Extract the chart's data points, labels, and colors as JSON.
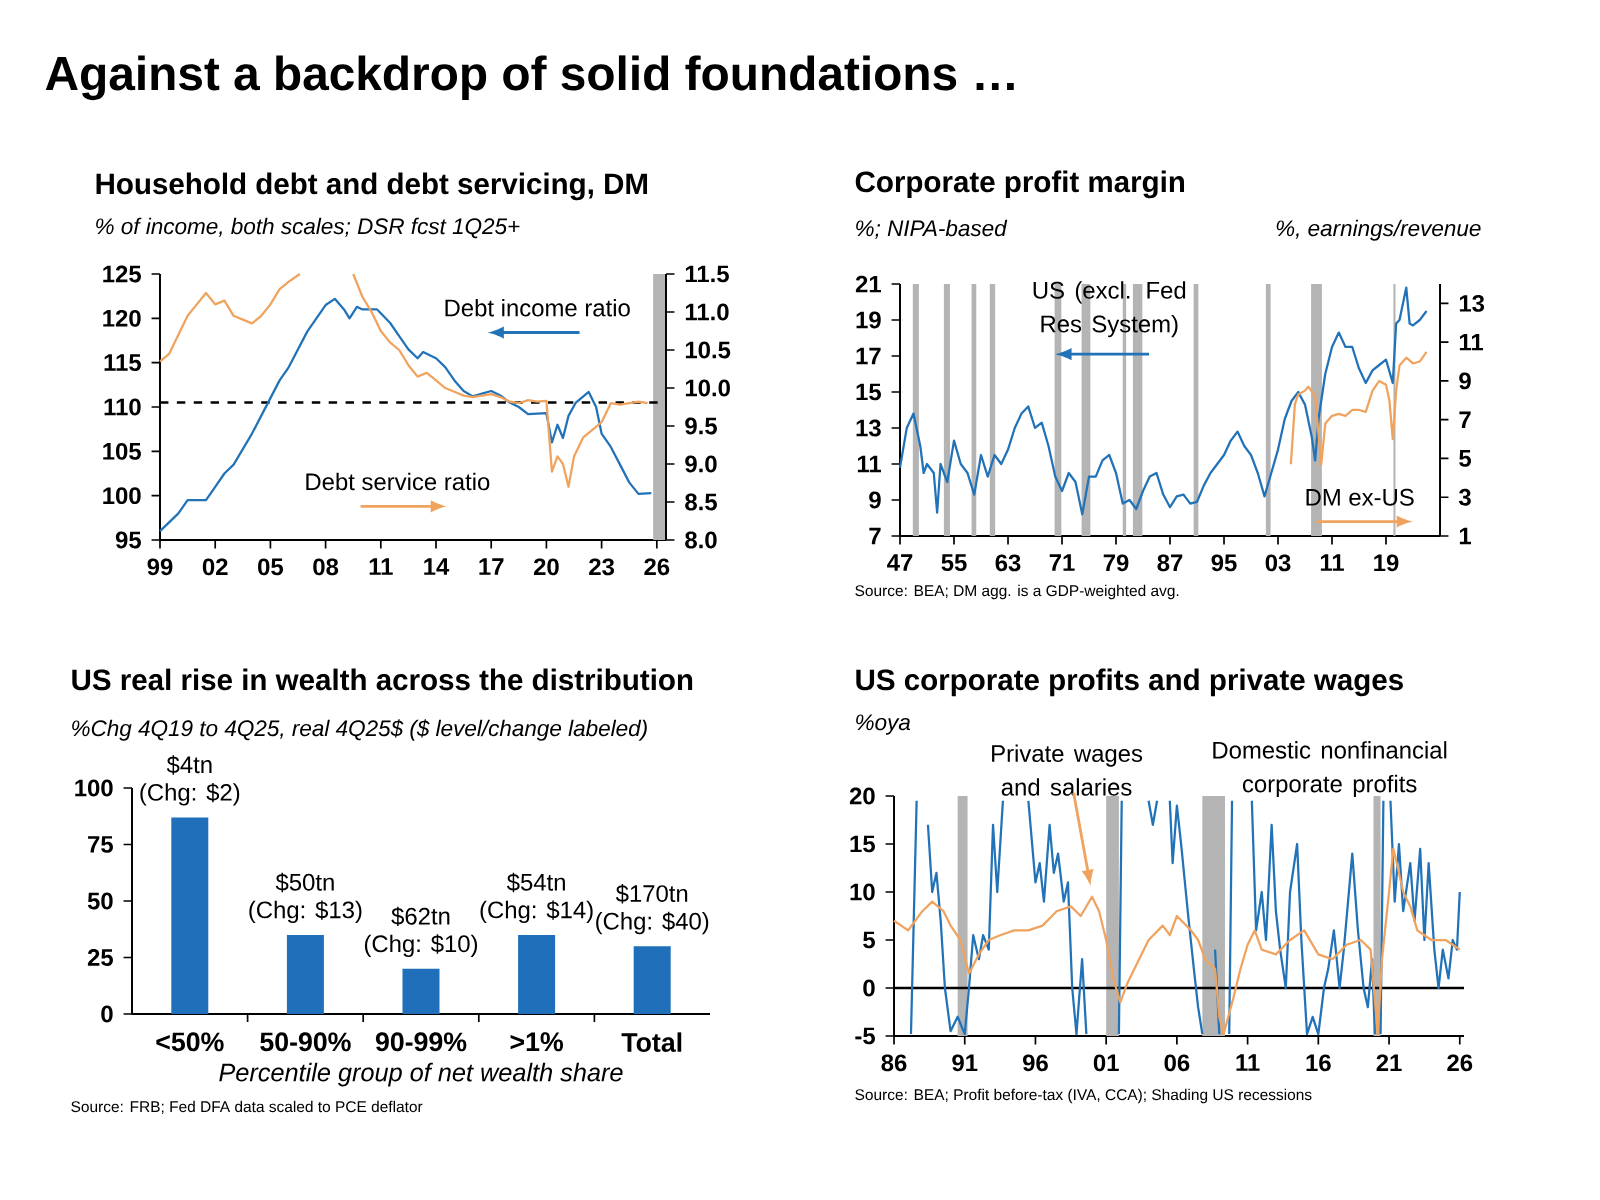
{
  "chart_data": [
    {
      "type": "other",
      "title": "Against a backdrop of solid foundations …"
    },
    {
      "type": "line",
      "title": "Household debt and debt servicing, DM",
      "subtitle": "% of income, both scales; DSR fcst 1Q25+",
      "xlim": [
        1999,
        2026.5
      ],
      "xticks": [
        {
          "value": 1999,
          "label": "99"
        },
        {
          "value": 2002,
          "label": "02"
        },
        {
          "value": 2005,
          "label": "05"
        },
        {
          "value": 2008,
          "label": "08"
        },
        {
          "value": 2011,
          "label": "11"
        },
        {
          "value": 2014,
          "label": "14"
        },
        {
          "value": 2017,
          "label": "17"
        },
        {
          "value": 2020,
          "label": "20"
        },
        {
          "value": 2023,
          "label": "23"
        },
        {
          "value": 2026,
          "label": "26"
        }
      ],
      "ylim": [
        95,
        125
      ],
      "yticks": [
        95,
        100,
        105,
        110,
        115,
        120,
        125
      ],
      "y2lim": [
        8,
        11.5
      ],
      "y2ticks": [
        {
          "value": 8,
          "label": "8.0"
        },
        {
          "value": 8.5,
          "label": "8.5"
        },
        {
          "value": 9,
          "label": "9.0"
        },
        {
          "value": 9.5,
          "label": "9.5"
        },
        {
          "value": 10,
          "label": "10.0"
        },
        {
          "value": 10.5,
          "label": "10.5"
        },
        {
          "value": 11,
          "label": "11.0"
        },
        {
          "value": 11.5,
          "label": "11.5"
        }
      ],
      "series": [
        {
          "name": "Debt income ratio",
          "color": "#2272b8",
          "x": [
            1999,
            2000,
            2000.5,
            2001.5,
            2002,
            2002.5,
            2003,
            2004,
            2005,
            2005.5,
            2006,
            2007,
            2008,
            2008.5,
            2009,
            2009.3,
            2009.7,
            2010,
            2010.8,
            2011.5,
            2012,
            2012.5,
            2013,
            2013.3,
            2014,
            2014.5,
            2015,
            2015.5,
            2016,
            2016.5,
            2017,
            2017.5,
            2018,
            2018.5,
            2019,
            2020,
            2020.3,
            2020.6,
            2020.9,
            2021.2,
            2021.6,
            2022.3,
            2022.7,
            2023,
            2023.5,
            2024,
            2024.5,
            2025,
            2025.7
          ],
          "values": [
            96,
            98,
            99.5,
            99.5,
            101,
            102.5,
            103.5,
            107,
            111,
            113,
            114.5,
            118.5,
            121.5,
            122.2,
            121,
            120,
            121.3,
            121,
            121,
            119.5,
            118,
            116.5,
            115.5,
            116.2,
            115.5,
            114.5,
            113,
            111.8,
            111.2,
            111.5,
            111.8,
            111.3,
            110.5,
            110,
            109.2,
            109.3,
            106,
            108,
            106.5,
            109,
            110.5,
            111.7,
            110,
            107,
            105.5,
            103.5,
            101.5,
            100.2,
            100.3
          ]
        },
        {
          "name": "Debt service ratio",
          "color": "#f0a35e",
          "axis": "y2",
          "x": [
            1999,
            1999.5,
            2000,
            2000.5,
            2001,
            2001.5,
            2002,
            2002.5,
            2003,
            2003.5,
            2004,
            2004.5,
            2005,
            2005.5,
            2006,
            2006.6,
            2007.5,
            2009.5,
            2010,
            2010.5,
            2011,
            2011.5,
            2012,
            2012.5,
            2013,
            2013.5,
            2014,
            2014.5,
            2015,
            2015.5,
            2016,
            2016.5,
            2017,
            2017.5,
            2018,
            2018.5,
            2019,
            2019.5,
            2020,
            2020.3,
            2020.6,
            2020.9,
            2021.2,
            2021.5,
            2022,
            2022.5,
            2023,
            2023.5,
            2024,
            2024.5,
            2025,
            2025.5
          ],
          "values": [
            10.35,
            10.45,
            10.7,
            10.95,
            11.1,
            11.25,
            11.1,
            11.15,
            10.95,
            10.9,
            10.85,
            10.95,
            11.1,
            11.3,
            11.4,
            11.5,
            null,
            11.5,
            11.2,
            11.0,
            10.75,
            10.6,
            10.5,
            10.3,
            10.15,
            10.2,
            10.1,
            10.0,
            9.95,
            9.9,
            9.88,
            9.9,
            9.92,
            9.88,
            9.82,
            9.8,
            9.84,
            9.82,
            9.83,
            8.9,
            9.1,
            9.0,
            8.7,
            9.1,
            9.35,
            9.45,
            9.55,
            9.8,
            9.78,
            9.8,
            9.82,
            9.8
          ]
        }
      ],
      "ref_lines": [
        {
          "axis": "y",
          "value": 110.5,
          "color": "#000000",
          "line_style": "dashed"
        }
      ],
      "bands": [
        {
          "axis": "x",
          "from": 2025.8,
          "to": 2026.5,
          "color": "#b4b4b4"
        }
      ]
    },
    {
      "type": "line",
      "title": "Corporate profit margin",
      "ylabel": "%; NIPA-based",
      "y2label": "%, earnings/revenue",
      "xlim": [
        1947,
        2027
      ],
      "xticks": [
        {
          "value": 1947,
          "label": "47"
        },
        {
          "value": 1955,
          "label": "55"
        },
        {
          "value": 1963,
          "label": "63"
        },
        {
          "value": 1971,
          "label": "71"
        },
        {
          "value": 1979,
          "label": "79"
        },
        {
          "value": 1987,
          "label": "87"
        },
        {
          "value": 1995,
          "label": "95"
        },
        {
          "value": 2003,
          "label": "03"
        },
        {
          "value": 2011,
          "label": "11"
        },
        {
          "value": 2019,
          "label": "19"
        }
      ],
      "ylim": [
        7,
        21
      ],
      "yticks": [
        7,
        9,
        11,
        13,
        15,
        17,
        19,
        21
      ],
      "y2lim": [
        1,
        14
      ],
      "y2ticks": [
        1,
        3,
        5,
        7,
        9,
        11,
        13
      ],
      "series": [
        {
          "name": "US (excl. Fed Res System)",
          "color": "#2272b8",
          "x": [
            1947,
            1948,
            1949,
            1950,
            1950.5,
            1951,
            1952,
            1952.5,
            1953,
            1954,
            1955,
            1956,
            1957,
            1958,
            1959,
            1960,
            1961,
            1962,
            1963,
            1964,
            1965,
            1966,
            1967,
            1968,
            1969,
            1970,
            1971,
            1972,
            1973,
            1974,
            1975,
            1976,
            1977,
            1978,
            1979,
            1980,
            1981,
            1982,
            1983,
            1984,
            1985,
            1986,
            1987,
            1988,
            1989,
            1990,
            1991,
            1992,
            1993,
            1994,
            1995,
            1996,
            1997,
            1998,
            1999,
            2000,
            2001,
            2002,
            2003,
            2004,
            2005,
            2006,
            2007,
            2008,
            2008.5,
            2009,
            2010,
            2011,
            2012,
            2013,
            2014,
            2015,
            2016,
            2017,
            2018,
            2019,
            2020,
            2020.5,
            2021,
            2022,
            2022.5,
            2023,
            2024,
            2025
          ],
          "values": [
            10.8,
            13,
            13.8,
            12,
            10.5,
            11,
            10.5,
            8.3,
            11,
            10,
            12.3,
            11,
            10.5,
            9.3,
            11.5,
            10.3,
            11.5,
            11,
            11.8,
            13,
            13.8,
            14.2,
            13,
            13.3,
            12,
            10.3,
            9.5,
            10.5,
            10,
            8.2,
            10.3,
            10.3,
            11.2,
            11.5,
            10.5,
            8.8,
            9,
            8.5,
            9.5,
            10.3,
            10.5,
            9.3,
            8.6,
            9.2,
            9.3,
            8.8,
            8.9,
            9.8,
            10.5,
            11,
            11.5,
            12.3,
            12.8,
            12,
            11.5,
            10.5,
            9.2,
            10.5,
            11.8,
            13.5,
            14.5,
            15,
            14.3,
            12.5,
            11.2,
            13.5,
            16,
            17.5,
            18.3,
            17.5,
            17.5,
            16.3,
            15.5,
            16.2,
            16.5,
            16.8,
            15.5,
            18.8,
            19,
            20.8,
            18.8,
            18.7,
            19,
            19.5
          ]
        },
        {
          "name": "DM ex-US",
          "color": "#f0a35e",
          "axis": "y2",
          "x": [
            2004.9,
            2005.5,
            2006,
            2007,
            2007.5,
            2008.5,
            2009.4,
            2010,
            2011,
            2012,
            2013,
            2014,
            2015,
            2016,
            2017,
            2018,
            2019,
            2019.5,
            2020,
            2020.5,
            2021,
            2022,
            2023,
            2024,
            2025
          ],
          "values": [
            4.7,
            7.8,
            8.3,
            8.5,
            8.7,
            8.2,
            4.7,
            6.8,
            7.2,
            7.3,
            7.2,
            7.5,
            7.5,
            7.4,
            8.5,
            9.0,
            8.8,
            8.0,
            6.0,
            8.5,
            9.8,
            10.2,
            9.9,
            10.0,
            10.5
          ]
        }
      ],
      "bands": [
        {
          "axis": "x",
          "from": 1948.9,
          "to": 1949.8,
          "color": "#b4b4b4"
        },
        {
          "axis": "x",
          "from": 1953.5,
          "to": 1954.4,
          "color": "#b4b4b4"
        },
        {
          "axis": "x",
          "from": 1957.6,
          "to": 1958.3,
          "color": "#b4b4b4"
        },
        {
          "axis": "x",
          "from": 1960.3,
          "to": 1961.1,
          "color": "#b4b4b4"
        },
        {
          "axis": "x",
          "from": 1969.9,
          "to": 1970.9,
          "color": "#b4b4b4"
        },
        {
          "axis": "x",
          "from": 1973.9,
          "to": 1975.2,
          "color": "#b4b4b4"
        },
        {
          "axis": "x",
          "from": 1980.0,
          "to": 1980.5,
          "color": "#b4b4b4"
        },
        {
          "axis": "x",
          "from": 1981.5,
          "to": 1982.9,
          "color": "#b4b4b4"
        },
        {
          "axis": "x",
          "from": 1990.5,
          "to": 1991.2,
          "color": "#b4b4b4"
        },
        {
          "axis": "x",
          "from": 2001.2,
          "to": 2001.9,
          "color": "#b4b4b4"
        },
        {
          "axis": "x",
          "from": 2007.9,
          "to": 2009.5,
          "color": "#b4b4b4"
        },
        {
          "axis": "x",
          "from": 2020.1,
          "to": 2020.4,
          "color": "#b4b4b4"
        }
      ],
      "annotations": [
        "Source: BEA; DM agg. is a GDP-weighted avg."
      ]
    },
    {
      "type": "bar",
      "title": "US real rise in wealth across the distribution",
      "subtitle": "%Chg 4Q19 to 4Q25, real 4Q25$ ($ level/change labeled)",
      "xlabel": "Percentile group of net wealth share",
      "categories": [
        "<50%",
        "50-90%",
        "90-99%",
        ">1%",
        "Total"
      ],
      "values": [
        87,
        35,
        20,
        35,
        30
      ],
      "color": "#1f6fba",
      "ylim": [
        0,
        100
      ],
      "yticks": [
        0,
        25,
        50,
        75,
        100
      ],
      "annotations": [
        {
          "text": "$4tn",
          "x": "<50%",
          "y": 87
        },
        {
          "text": "(Chg: $2)",
          "x": "<50%",
          "y": 87
        },
        {
          "text": "$50tn",
          "x": "50-90%",
          "y": 35
        },
        {
          "text": "(Chg: $13)",
          "x": "50-90%",
          "y": 35
        },
        {
          "text": "$62tn",
          "x": "90-99%",
          "y": 20
        },
        {
          "text": "(Chg: $10)",
          "x": "90-99%",
          "y": 20
        },
        {
          "text": "$54tn",
          "x": ">1%",
          "y": 35
        },
        {
          "text": "(Chg: $14)",
          "x": ">1%",
          "y": 35
        },
        {
          "text": "$170tn",
          "x": "Total",
          "y": 30
        },
        {
          "text": "(Chg: $40)",
          "x": "Total",
          "y": 30
        },
        "Source: FRB; Fed DFA data scaled to PCE deflator"
      ]
    },
    {
      "type": "line",
      "title": "US corporate profits and private wages",
      "subtitle": "%oya",
      "xlim": [
        1986,
        2026.3
      ],
      "xticks": [
        {
          "value": 1986,
          "label": "86"
        },
        {
          "value": 1991,
          "label": "91"
        },
        {
          "value": 1996,
          "label": "96"
        },
        {
          "value": 2001,
          "label": "01"
        },
        {
          "value": 2006,
          "label": "06"
        },
        {
          "value": 2011,
          "label": "11"
        },
        {
          "value": 2016,
          "label": "16"
        },
        {
          "value": 2021,
          "label": "21"
        },
        {
          "value": 2026,
          "label": "26"
        }
      ],
      "ylim": [
        -5,
        20
      ],
      "yticks": [
        -5,
        0,
        5,
        10,
        15,
        20
      ],
      "series": [
        {
          "name": "Domestic nonfinancial corporate profits",
          "color": "#2272b8",
          "x": [
            1987.2,
            1987.6,
            1988,
            1988.4,
            1988.7,
            1989,
            1989.3,
            1989.6,
            1990,
            1990.5,
            1991,
            1991.3,
            1991.6,
            1992,
            1992.3,
            1992.7,
            1993,
            1993.3,
            1993.7,
            1994,
            1995.5,
            1996,
            1996.3,
            1996.6,
            1997,
            1997.3,
            1997.6,
            1998,
            1998.3,
            1998.6,
            1998.9,
            1999.3,
            1999.6,
            2000,
            2001.9,
            2002.1,
            2002.3,
            2004,
            2004.3,
            2004.6,
            2004.8,
            2005.5,
            2005.7,
            2006,
            2006.3,
            2006.8,
            2007.2,
            2007.5,
            2007.8,
            2008.2,
            2008.7,
            2009,
            2009.2,
            2009.7,
            2009.9,
            2010.1,
            2011.3,
            2011.6,
            2012,
            2012.3,
            2012.7,
            2013,
            2013.3,
            2013.7,
            2014,
            2014.5,
            2014.8,
            2015.2,
            2015.6,
            2016,
            2016.4,
            2016.7,
            2017.1,
            2017.5,
            2017.8,
            2018.1,
            2018.4,
            2018.8,
            2019.2,
            2019.5,
            2019.8,
            2020,
            2020.1,
            2020.4,
            2020.6,
            2020.8,
            2021.1,
            2021.4,
            2021.7,
            2022,
            2022.5,
            2022.8,
            2023.2,
            2023.5,
            2023.8,
            2024.2,
            2024.5,
            2024.8,
            2025.2,
            2025.5,
            2025.8,
            2026
          ],
          "values": [
            -4.8,
            19.5,
            null,
            17,
            10,
            12,
            7,
            0,
            -4.5,
            -3,
            -4.8,
            0,
            5.5,
            3,
            5.5,
            4,
            17,
            10,
            19.5,
            null,
            19.5,
            11,
            13,
            9,
            17,
            12,
            14,
            9,
            11,
            0,
            -4.8,
            3,
            -4.8,
            null,
            -4.8,
            19.5,
            null,
            19.5,
            17,
            19.5,
            null,
            19.5,
            13,
            19,
            15,
            7.5,
            2,
            -2,
            -4.8,
            null,
            4,
            -4.8,
            null,
            -4.8,
            19.5,
            null,
            19.5,
            6,
            10,
            5,
            17,
            8,
            4,
            0,
            10,
            15,
            5,
            -4.8,
            -3,
            -4.8,
            0,
            2,
            6,
            0,
            4,
            9,
            14,
            6,
            0,
            -2,
            3,
            -4.8,
            null,
            -4.8,
            19.5,
            null,
            19.5,
            9,
            15,
            8,
            13,
            7,
            14.5,
            5,
            13,
            4,
            0,
            4,
            1,
            5,
            4,
            10
          ]
        },
        {
          "name": "Private wages and salaries",
          "color": "#f0a35e",
          "x": [
            1986,
            1987,
            1988,
            1988.7,
            1989.5,
            1990,
            1990.7,
            1991.3,
            1992,
            1992.7,
            1993.5,
            1994.5,
            1995.5,
            1996.5,
            1997.5,
            1998.5,
            1999.2,
            2000,
            2000.5,
            2001,
            2001.5,
            2002,
            2002.5,
            2003,
            2004,
            2005,
            2005.5,
            2006,
            2007,
            2007.5,
            2008,
            2008.7,
            2009,
            2009.3,
            2010,
            2010.5,
            2011,
            2011.5,
            2012,
            2013,
            2014,
            2015,
            2016,
            2017,
            2018,
            2019,
            2019.7,
            2020.2,
            2020.5,
            2021,
            2021.3,
            2021.7,
            2022,
            2022.5,
            2023,
            2023.5,
            2024,
            2025,
            2025.5,
            2026
          ],
          "values": [
            7,
            6,
            8,
            9,
            8,
            6.5,
            5,
            1.5,
            3.5,
            5,
            5.5,
            6,
            6,
            6.5,
            8,
            8.5,
            7.5,
            9.5,
            8,
            5,
            1,
            -1.5,
            0.5,
            2,
            5,
            6.5,
            5.5,
            7.5,
            6,
            5,
            3,
            2,
            -3,
            -4.8,
            -1,
            2,
            4.5,
            6,
            4,
            3.5,
            5,
            6,
            3.5,
            3,
            4.5,
            5,
            4,
            -4.8,
            3,
            10,
            14.5,
            12,
            10,
            8.5,
            6,
            5.5,
            5,
            5,
            4.5,
            4
          ]
        }
      ],
      "ref_lines": [
        {
          "axis": "y",
          "value": 0,
          "color": "#000000",
          "line_style": "solid"
        }
      ],
      "bands": [
        {
          "axis": "x",
          "from": 1990.5,
          "to": 1991.2,
          "color": "#b4b4b4"
        },
        {
          "axis": "x",
          "from": 2001.0,
          "to": 2001.9,
          "color": "#b4b4b4"
        },
        {
          "axis": "x",
          "from": 2007.8,
          "to": 2009.4,
          "color": "#b4b4b4"
        },
        {
          "axis": "x",
          "from": 2019.9,
          "to": 2020.4,
          "color": "#b4b4b4"
        }
      ],
      "annotations": [
        "Source: BEA; Profit before-tax (IVA, CCA); Shading US recessions"
      ]
    }
  ]
}
